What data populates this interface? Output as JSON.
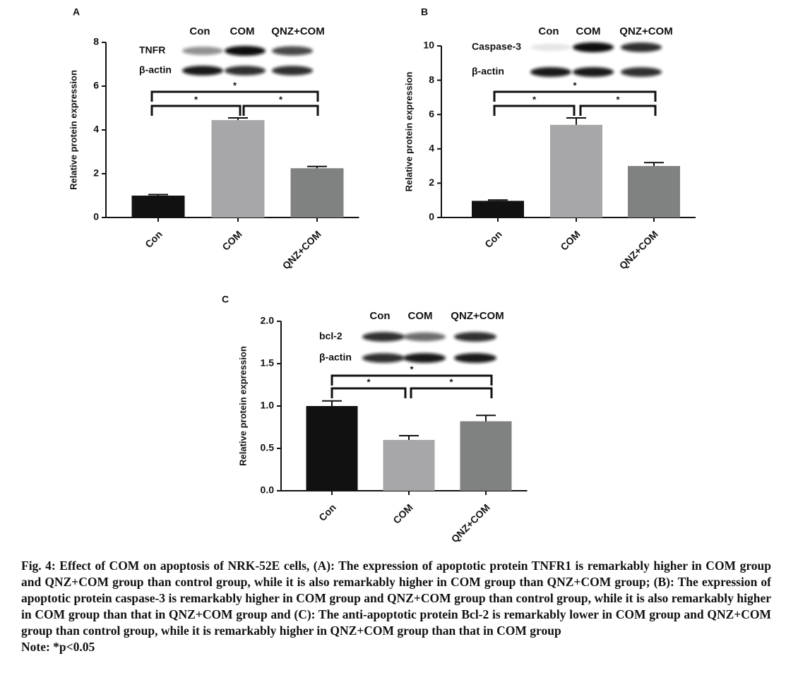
{
  "chart_data": [
    {
      "type": "bar",
      "panel": "A",
      "y_label": "Relative protein expression",
      "categories": [
        "Con",
        "COM",
        "QNZ+COM"
      ],
      "values": [
        1.0,
        4.45,
        2.25
      ],
      "errors": [
        0.05,
        0.1,
        0.08
      ],
      "colors": [
        "#111111",
        "#a7a7a9",
        "#808181"
      ],
      "ylim": [
        0,
        8
      ],
      "yticks": [
        0,
        2,
        4,
        6,
        8
      ],
      "blot": {
        "lanes": [
          "Con",
          "COM",
          "QNZ+COM"
        ],
        "rows": [
          "TNFR",
          "β-actin"
        ]
      },
      "significance": [
        {
          "between": [
            0,
            2
          ],
          "label": "*"
        },
        {
          "between": [
            0,
            1
          ],
          "label": "*"
        },
        {
          "between": [
            1,
            2
          ],
          "label": "*"
        }
      ]
    },
    {
      "type": "bar",
      "panel": "B",
      "y_label": "Relative protein expression",
      "categories": [
        "Con",
        "COM",
        "QNZ+COM"
      ],
      "values": [
        0.97,
        5.4,
        3.0
      ],
      "errors": [
        0.05,
        0.4,
        0.2
      ],
      "colors": [
        "#111111",
        "#a7a7a9",
        "#808181"
      ],
      "ylim": [
        0,
        10
      ],
      "yticks": [
        0,
        2,
        4,
        6,
        8,
        10
      ],
      "blot": {
        "lanes": [
          "Con",
          "COM",
          "QNZ+COM"
        ],
        "rows": [
          "Caspase-3",
          "β-actin"
        ]
      },
      "significance": [
        {
          "between": [
            0,
            2
          ],
          "label": "*"
        },
        {
          "between": [
            0,
            1
          ],
          "label": "*"
        },
        {
          "between": [
            1,
            2
          ],
          "label": "*"
        }
      ]
    },
    {
      "type": "bar",
      "panel": "C",
      "y_label": "Relative protein expression",
      "categories": [
        "Con",
        "COM",
        "QNZ+COM"
      ],
      "values": [
        1.0,
        0.6,
        0.82
      ],
      "errors": [
        0.06,
        0.05,
        0.07
      ],
      "colors": [
        "#111111",
        "#a7a7a9",
        "#808181"
      ],
      "ylim": [
        0,
        2
      ],
      "yticks": [
        {
          "value": 0,
          "label": "0.0"
        },
        0.5,
        {
          "value": 1,
          "label": "1.0"
        },
        1.5,
        {
          "value": 2,
          "label": "2.0"
        }
      ],
      "blot": {
        "lanes": [
          "Con",
          "COM",
          "QNZ+COM"
        ],
        "rows": [
          "bcl-2",
          "β-actin"
        ]
      },
      "significance": [
        {
          "between": [
            0,
            2
          ],
          "label": "*"
        },
        {
          "between": [
            0,
            1
          ],
          "label": "*"
        },
        {
          "between": [
            1,
            2
          ],
          "label": "*"
        }
      ]
    }
  ],
  "caption": "Fig. 4: Effect of COM on apoptosis of NRK-52E cells, (A): The expression of apoptotic protein TNFR1 is remarkably higher in COM group and QNZ+COM group than control group, while it is also remarkably higher in COM group than QNZ+COM group; (B): The expression of apoptotic protein caspase-3 is remarkably higher in COM group and QNZ+COM group than control group, while it is also remarkably higher in COM group than that in QNZ+COM group and (C): The anti-apoptotic protein Bcl-2 is remarkably lower in COM group and QNZ+COM group than control group, while it is remarkably higher in QNZ+COM group than that in COM group",
  "note": "Note: *p<0.05"
}
